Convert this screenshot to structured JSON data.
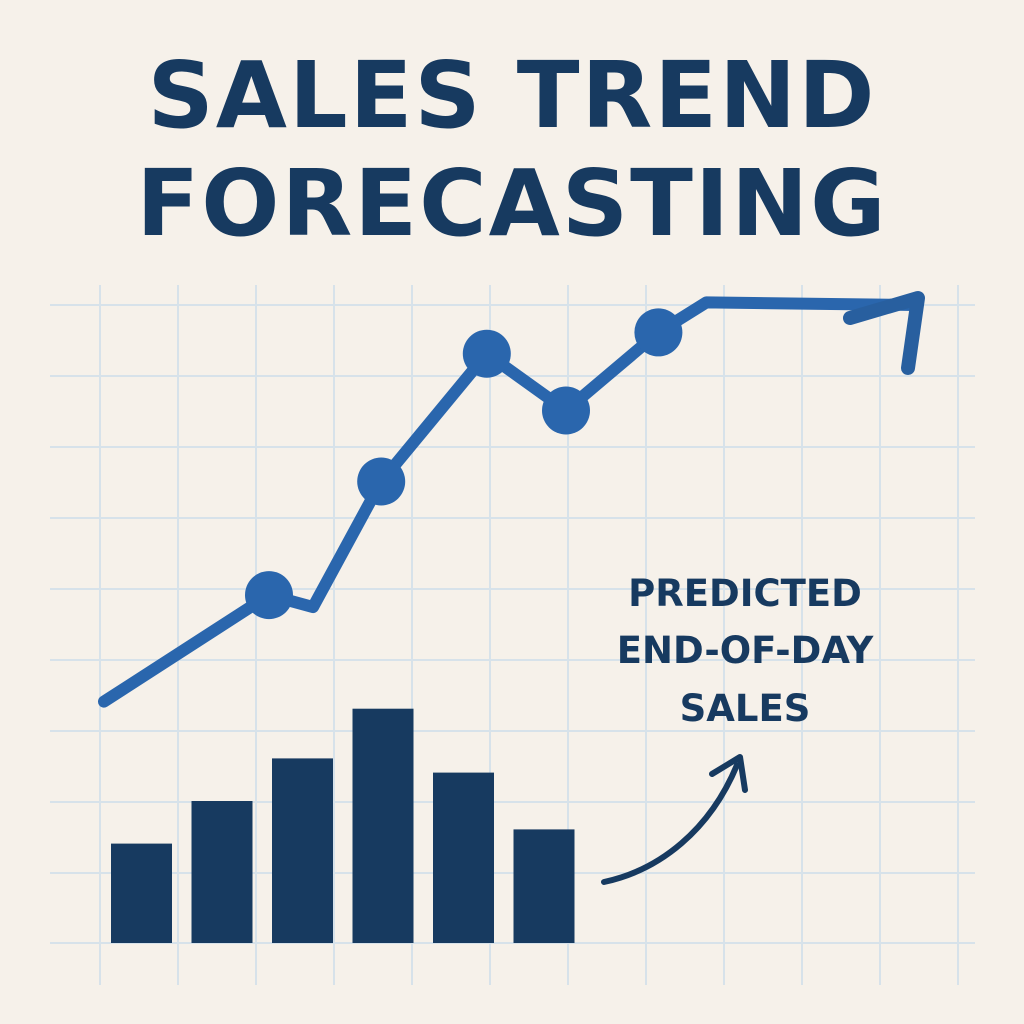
{
  "colors": {
    "background": "#f6f1ea",
    "grid": "#d7e2ea",
    "navy": "#173a60",
    "blue": "#2a66ad",
    "arrow_blue": "#285f9f"
  },
  "title_lines": [
    "SALES TREND",
    "FORECASTING"
  ],
  "annotation_lines": [
    "PREDICTED",
    "END-OF-DAY",
    "SALES"
  ],
  "chart_data": {
    "type": "bar",
    "grid": true,
    "xlabel": "",
    "ylabel": "",
    "bars": {
      "values": [
        1.4,
        2.0,
        2.6,
        3.3,
        2.4,
        1.6
      ]
    },
    "line": {
      "x": [
        0.0,
        2.5,
        4.2,
        5.8,
        7.0,
        8.4
      ],
      "y": [
        3.4,
        4.9,
        6.5,
        8.3,
        7.5,
        8.6
      ],
      "markers": [
        false,
        true,
        true,
        true,
        true,
        true
      ],
      "trend_arrow": true
    },
    "ylim": [
      0,
      10
    ]
  }
}
